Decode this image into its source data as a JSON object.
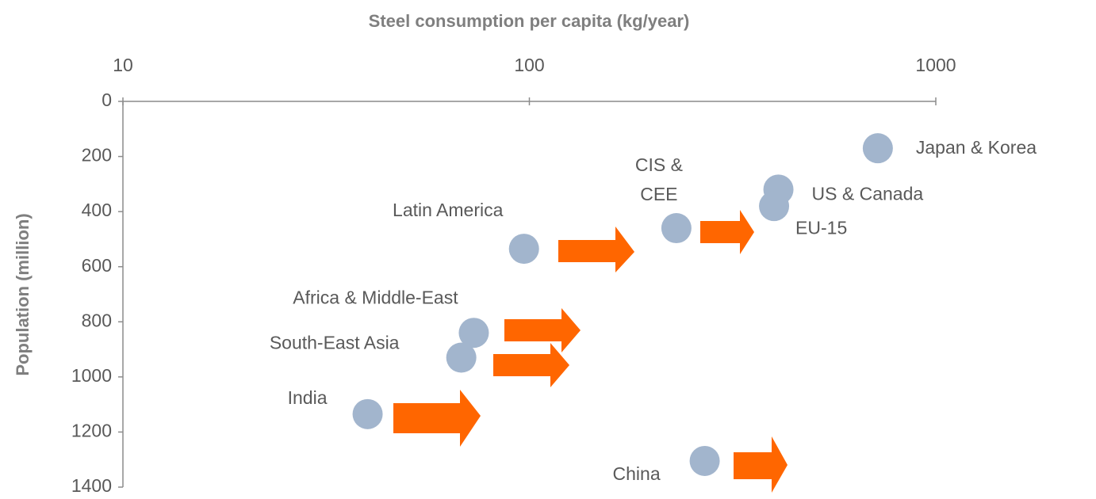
{
  "chart_data": {
    "type": "scatter",
    "x_label": "Steel consumption per capita (kg/year)",
    "y_label": "Population (million)",
    "labels": [
      "Japan & Korea",
      "US & Canada",
      "EU-15",
      "CIS &\nCEE",
      "Latin America",
      "Africa & Middle-East",
      "South-East Asia",
      "India",
      "China"
    ],
    "x": [
      720,
      410,
      400,
      230,
      97,
      73,
      68,
      40,
      270
    ],
    "values": [
      170,
      320,
      380,
      460,
      535,
      840,
      930,
      1135,
      1305
    ],
    "color": "#a2b5cd",
    "xscale": "log",
    "x_axis_position": "top",
    "xlim": [
      10,
      1000
    ],
    "xticks": [
      10,
      100,
      1000
    ],
    "ylim": [
      0,
      1400
    ],
    "y_inverted": true,
    "yticks": [
      0,
      200,
      400,
      600,
      800,
      1000,
      1200,
      1400
    ]
  }
}
